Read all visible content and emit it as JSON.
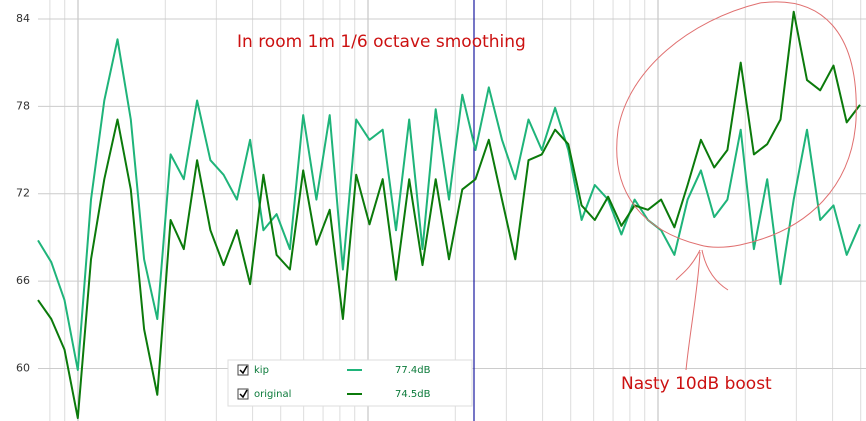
{
  "chart_data": {
    "type": "line",
    "title": "In room 1m  1/6 octave smoothing",
    "annotation": "Nasty 10dB boost",
    "ylim": [
      56.4,
      85.3
    ],
    "yticks": [
      60,
      66,
      72,
      78,
      84
    ],
    "grid": true,
    "series": [
      {
        "name": "kip",
        "color": "#1fb47a",
        "legend_value": "77.4dB",
        "values": [
          68.8,
          67.3,
          64.7,
          59.9,
          71.6,
          78.4,
          82.6,
          77.1,
          67.5,
          63.4,
          74.7,
          73,
          78.4,
          74.3,
          73.3,
          71.6,
          75.7,
          69.5,
          70.6,
          68.2,
          77.4,
          71.6,
          77.4,
          66.8,
          77.1,
          75.7,
          76.4,
          69.5,
          77.1,
          68.2,
          77.8,
          71.6,
          78.8,
          75,
          79.3,
          75.7,
          73,
          77.1,
          75,
          77.9,
          75,
          70.2,
          72.6,
          71.6,
          69.2,
          71.6,
          70.2,
          69.5,
          67.8,
          71.6,
          73.6,
          70.4,
          71.6,
          76.4,
          68.2,
          73,
          65.8,
          71.6,
          76.4,
          70.2,
          71.2,
          67.8,
          69.9
        ]
      },
      {
        "name": "original",
        "color": "#0b7a0b",
        "legend_value": "74.5dB",
        "values": [
          64.7,
          63.4,
          61.3,
          56.6,
          67.5,
          73,
          77.1,
          72.3,
          62.7,
          58.2,
          70.2,
          68.2,
          74.3,
          69.5,
          67.1,
          69.5,
          65.8,
          73.3,
          67.8,
          66.8,
          73.6,
          68.5,
          70.9,
          63.4,
          73.3,
          69.9,
          73,
          66.1,
          73,
          67.1,
          73,
          67.5,
          72.3,
          73,
          75.7,
          71.6,
          67.5,
          74.3,
          74.7,
          76.4,
          75.4,
          71.2,
          70.2,
          71.8,
          69.8,
          71.2,
          70.9,
          71.6,
          69.7,
          72.6,
          75.7,
          73.8,
          75,
          81,
          74.7,
          75.4,
          77.1,
          84.5,
          79.8,
          79.1,
          80.8,
          76.9,
          78.1
        ]
      }
    ]
  }
}
